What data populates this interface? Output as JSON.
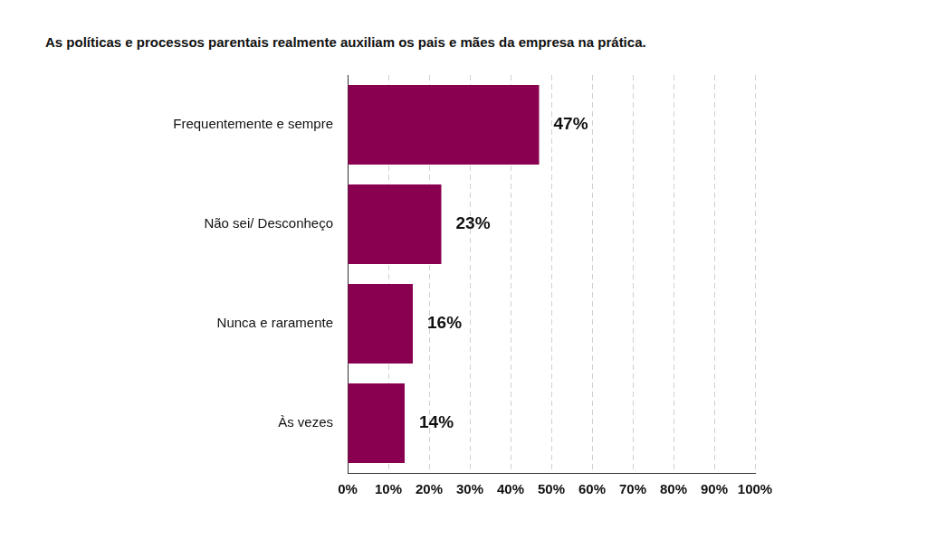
{
  "chart_data": {
    "type": "bar",
    "orientation": "horizontal",
    "title": "As políticas e processos parentais realmente auxiliam os pais e mães da empresa na prática.",
    "categories": [
      "Frequentemente e sempre",
      "Não sei/ Desconheço",
      "Nunca e raramente",
      "Às vezes"
    ],
    "values": [
      47,
      23,
      16,
      14
    ],
    "value_labels": [
      "47%",
      "23%",
      "16%",
      "14%"
    ],
    "color": "#8a0051",
    "xlim": [
      0,
      100
    ],
    "xticks": [
      {
        "value": 0,
        "label": "0%"
      },
      {
        "value": 10,
        "label": "10%"
      },
      {
        "value": 20,
        "label": "20%"
      },
      {
        "value": 30,
        "label": "30%"
      },
      {
        "value": 40,
        "label": "40%"
      },
      {
        "value": 50,
        "label": "50%"
      },
      {
        "value": 60,
        "label": "60%"
      },
      {
        "value": 70,
        "label": "70%"
      },
      {
        "value": 80,
        "label": "80%"
      },
      {
        "value": 90,
        "label": "90%"
      },
      {
        "value": 100,
        "label": "100%"
      }
    ],
    "grid": true,
    "data_labels": true
  }
}
